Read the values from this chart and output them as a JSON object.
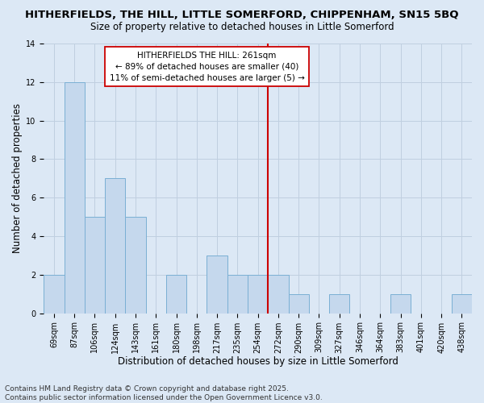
{
  "title": "HITHERFIELDS, THE HILL, LITTLE SOMERFORD, CHIPPENHAM, SN15 5BQ",
  "subtitle": "Size of property relative to detached houses in Little Somerford",
  "xlabel": "Distribution of detached houses by size in Little Somerford",
  "ylabel": "Number of detached properties",
  "bin_labels": [
    "69sqm",
    "87sqm",
    "106sqm",
    "124sqm",
    "143sqm",
    "161sqm",
    "180sqm",
    "198sqm",
    "217sqm",
    "235sqm",
    "254sqm",
    "272sqm",
    "290sqm",
    "309sqm",
    "327sqm",
    "346sqm",
    "364sqm",
    "383sqm",
    "401sqm",
    "420sqm",
    "438sqm"
  ],
  "bar_heights": [
    2,
    12,
    5,
    7,
    5,
    0,
    2,
    0,
    3,
    2,
    2,
    2,
    1,
    0,
    1,
    0,
    0,
    1,
    0,
    0,
    1
  ],
  "bar_color": "#c5d8ed",
  "bar_edgecolor": "#7aafd4",
  "ylim": [
    0,
    14
  ],
  "yticks": [
    0,
    2,
    4,
    6,
    8,
    10,
    12,
    14
  ],
  "vline_color": "#cc0000",
  "annotation_title": "HITHERFIELDS THE HILL: 261sqm",
  "annotation_line1": "← 89% of detached houses are smaller (40)",
  "annotation_line2": "11% of semi-detached houses are larger (5) →",
  "annotation_box_color": "#ffffff",
  "annotation_box_edgecolor": "#cc0000",
  "bg_color": "#dce8f5",
  "grid_color": "#c0cfe0",
  "footer_line1": "Contains HM Land Registry data © Crown copyright and database right 2025.",
  "footer_line2": "Contains public sector information licensed under the Open Government Licence v3.0.",
  "title_fontsize": 9.5,
  "subtitle_fontsize": 8.5,
  "xlabel_fontsize": 8.5,
  "ylabel_fontsize": 8.5,
  "tick_fontsize": 7,
  "footer_fontsize": 6.5,
  "annotation_fontsize": 7.5,
  "vline_x_bin": 10
}
